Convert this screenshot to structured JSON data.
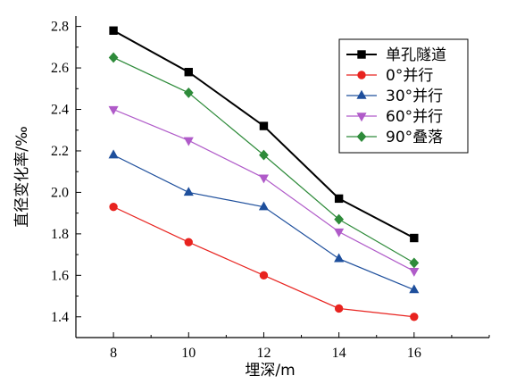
{
  "chart_data": {
    "type": "line",
    "xlabel": "埋深/m",
    "ylabel": "直径变化率/‰",
    "x": [
      8,
      10,
      12,
      14,
      16
    ],
    "xlim": [
      7,
      18
    ],
    "ylim": [
      1.3,
      2.85
    ],
    "xticks": [
      8,
      10,
      12,
      14,
      16
    ],
    "yticks": [
      1.4,
      1.6,
      1.8,
      2.0,
      2.2,
      2.4,
      2.6,
      2.8
    ],
    "ytick_labels": [
      "1.4",
      "1.6",
      "1.8",
      "2.0",
      "2.2",
      "2.4",
      "2.6",
      "2.8"
    ],
    "grid": false,
    "legend_position": "top-right",
    "series": [
      {
        "name": "单孔隧道",
        "color": "#000000",
        "marker": "square",
        "values": [
          2.78,
          2.58,
          2.32,
          1.97,
          1.78
        ]
      },
      {
        "name": "0°并行",
        "color": "#e8231f",
        "marker": "circle",
        "values": [
          1.93,
          1.76,
          1.6,
          1.44,
          1.4
        ]
      },
      {
        "name": "30°并行",
        "color": "#1e4f9c",
        "marker": "triangle-up",
        "values": [
          2.18,
          2.0,
          1.93,
          1.68,
          1.53
        ]
      },
      {
        "name": "60°并行",
        "color": "#b05bc9",
        "marker": "triangle-down",
        "values": [
          2.4,
          2.25,
          2.07,
          1.81,
          1.62
        ]
      },
      {
        "name": "90°叠落",
        "color": "#2e8b3a",
        "marker": "diamond",
        "values": [
          2.65,
          2.48,
          2.18,
          1.87,
          1.66
        ]
      }
    ]
  }
}
